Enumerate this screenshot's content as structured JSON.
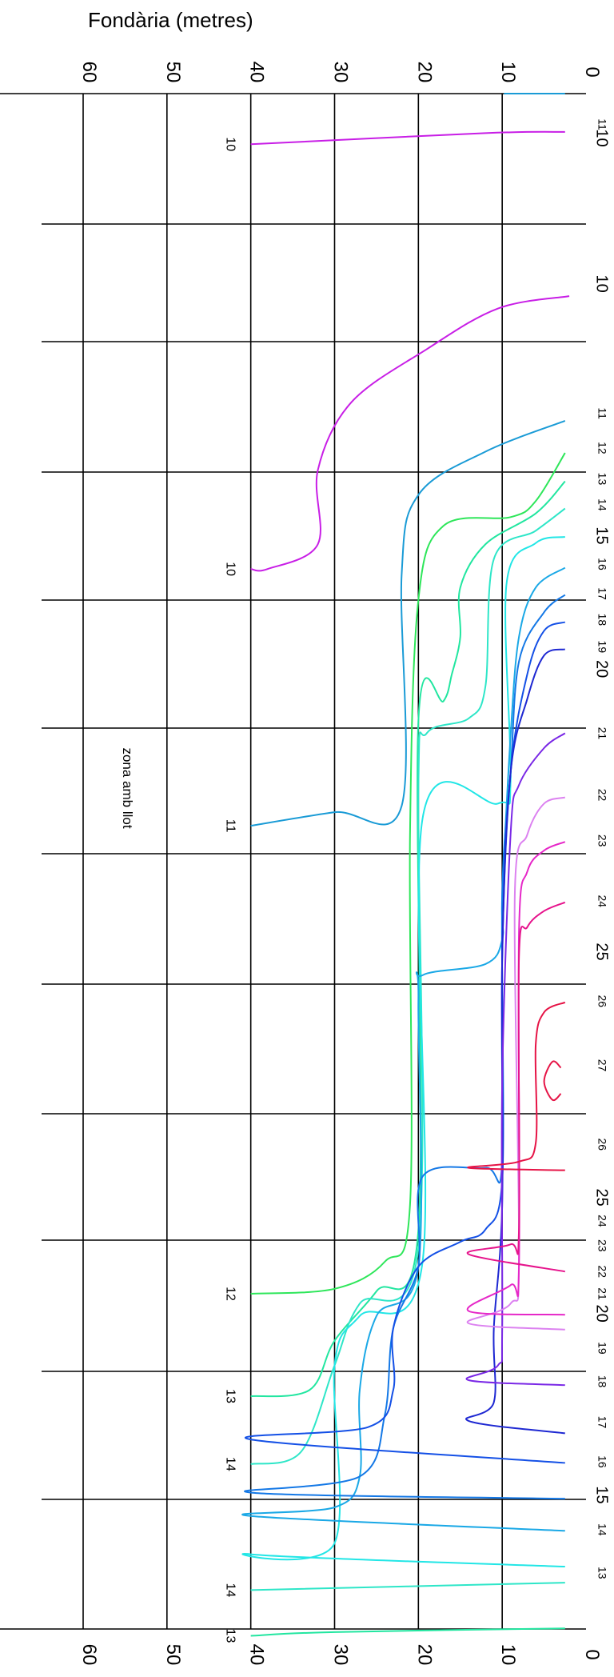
{
  "chart_data": {
    "type": "line",
    "title": "",
    "ylabel": "Fondària (metres)",
    "y_axis_ticks": [
      "0",
      "10",
      "20",
      "30",
      "40",
      "50",
      "60"
    ],
    "ylim": [
      0,
      60
    ],
    "orientation": "rotated-90-clockwise",
    "annotation": "zona amb llot",
    "contours": [
      {
        "name": "11",
        "color": "#1a9bd6",
        "points": [
          [
            2.5,
            0
          ],
          [
            9.8,
            0
          ]
        ],
        "labels": [
          "11"
        ]
      },
      {
        "name": "10a",
        "color": "#c81ee6",
        "points": [
          [
            2.5,
            3.1
          ],
          [
            12,
            3.2
          ],
          [
            40,
            4.1
          ]
        ],
        "labels": [
          "10",
          "10"
        ]
      },
      {
        "name": "10b",
        "color": "#c81ee6",
        "points": [
          [
            2,
            16.4
          ],
          [
            10.5,
            17.4
          ],
          [
            19,
            20.7
          ],
          [
            28,
            25
          ],
          [
            32,
            30.5
          ],
          [
            32,
            36.5
          ],
          [
            38,
            38.5
          ],
          [
            40,
            38.5
          ]
        ],
        "labels": [
          "10",
          "10"
        ]
      },
      {
        "name": "11b",
        "color": "#1a9bd6",
        "points": [
          [
            2.5,
            26.5
          ],
          [
            12,
            29
          ],
          [
            20,
            32.5
          ],
          [
            22,
            39
          ],
          [
            22,
            57.7
          ],
          [
            30,
            58.2
          ],
          [
            40,
            59.3
          ]
        ],
        "labels": [
          "11",
          "11"
        ]
      },
      {
        "name": "12",
        "color": "#2ee65a",
        "points": [
          [
            2.5,
            29.1
          ],
          [
            6,
            33
          ],
          [
            9,
            34.3
          ],
          [
            17,
            35
          ],
          [
            20,
            41
          ],
          [
            21,
            60
          ],
          [
            21,
            90
          ],
          [
            24,
            94.6
          ],
          [
            30,
            96.8
          ],
          [
            40,
            97.2
          ]
        ],
        "labels": [
          "12",
          "12"
        ]
      },
      {
        "name": "13a",
        "color": "#22e6a0",
        "points": [
          [
            2.5,
            31.4
          ],
          [
            6,
            34
          ],
          [
            12,
            36.5
          ],
          [
            15,
            40
          ],
          [
            15,
            44
          ],
          [
            16,
            47
          ],
          [
            17,
            49.2
          ],
          [
            20,
            50.8
          ],
          [
            20,
            92
          ],
          [
            25,
            97
          ],
          [
            30,
            101
          ],
          [
            33,
            105
          ],
          [
            40,
            105.5
          ]
        ],
        "labels": [
          "13",
          "13"
        ]
      },
      {
        "name": "14a",
        "color": "#2ee6c8",
        "points": [
          [
            2.5,
            33.6
          ],
          [
            6,
            35.4
          ],
          [
            11,
            37.7
          ],
          [
            12,
            48
          ],
          [
            14,
            50.6
          ],
          [
            19,
            51.8
          ],
          [
            20,
            56.2
          ],
          [
            20,
            93.5
          ],
          [
            27,
            98
          ],
          [
            30,
            103
          ],
          [
            34,
            110
          ],
          [
            40,
            111
          ]
        ],
        "labels": [
          "14",
          "14"
        ]
      },
      {
        "name": "15",
        "color": "#22e6e6",
        "points": [
          [
            2.5,
            35.9
          ],
          [
            6,
            36.4
          ],
          [
            9.5,
            39.8
          ],
          [
            9,
            55.7
          ],
          [
            10.5,
            57.5
          ],
          [
            19.5,
            58.7
          ],
          [
            19.5,
            94.6
          ],
          [
            27,
            99
          ],
          [
            30,
            103
          ],
          [
            30,
            117.4
          ],
          [
            40,
            118.3
          ],
          [
            2.5,
            119.3
          ]
        ],
        "labels": [
          "15",
          "15"
        ]
      },
      {
        "name": "16",
        "color": "#1aa8e6",
        "points": [
          [
            2.5,
            38.4
          ],
          [
            6,
            40
          ],
          [
            8,
            44
          ],
          [
            9,
            52
          ],
          [
            10,
            65
          ],
          [
            10,
            68.5
          ],
          [
            12,
            70.5
          ],
          [
            19.5,
            71.4
          ],
          [
            20,
            73.5
          ],
          [
            20,
            95
          ],
          [
            25,
            99
          ],
          [
            27,
            105
          ],
          [
            27,
            112
          ],
          [
            30,
            114.5
          ],
          [
            40,
            115.2
          ],
          [
            2.5,
            116.4
          ]
        ],
        "labels": [
          "16",
          "16"
        ]
      },
      {
        "name": "17",
        "color": "#1478e6",
        "points": [
          [
            2.5,
            40.6
          ],
          [
            5,
            42
          ],
          [
            8,
            46
          ],
          [
            9,
            55
          ],
          [
            10,
            65
          ],
          [
            10,
            86.5
          ],
          [
            12,
            87
          ],
          [
            19.5,
            87.7
          ],
          [
            20,
            95
          ],
          [
            23,
            100
          ],
          [
            24,
            107
          ],
          [
            27,
            112
          ],
          [
            40,
            113.3
          ],
          [
            2.5,
            113.8
          ]
        ],
        "labels": [
          "17",
          "17"
        ]
      },
      {
        "name": "18",
        "color": "#1450e6",
        "points": [
          [
            2.5,
            42.8
          ],
          [
            5,
            43.5
          ],
          [
            7,
            47
          ],
          [
            9,
            55
          ],
          [
            10,
            70
          ],
          [
            10,
            88
          ],
          [
            12,
            92
          ],
          [
            15,
            93
          ],
          [
            20,
            95
          ],
          [
            23,
            100
          ],
          [
            23,
            105
          ],
          [
            26,
            108
          ],
          [
            40,
            109
          ],
          [
            2.5,
            110.9
          ]
        ],
        "labels": [
          "18",
          "18"
        ]
      },
      {
        "name": "19",
        "color": "#1e28d2",
        "points": [
          [
            2.5,
            45
          ],
          [
            5,
            45.5
          ],
          [
            7,
            49
          ],
          [
            9,
            55
          ],
          [
            10,
            70
          ],
          [
            10,
            90
          ],
          [
            11,
            100
          ],
          [
            11,
            106
          ],
          [
            14,
            107.5
          ],
          [
            2.5,
            108.5
          ]
        ],
        "labels": [
          "19",
          "19"
        ]
      },
      {
        "name": "21",
        "color": "#7a28e6",
        "points": [
          [
            2.5,
            51.8
          ],
          [
            5,
            53
          ],
          [
            8,
            56
          ],
          [
            9,
            60
          ],
          [
            10,
            80
          ],
          [
            10,
            100
          ],
          [
            10.5,
            103
          ],
          [
            14,
            104.2
          ],
          [
            2.5,
            104.6
          ]
        ],
        "labels": [
          "21",
          "21"
        ]
      },
      {
        "name": "22",
        "color": "#dc82f0",
        "points": [
          [
            2.5,
            57
          ],
          [
            5,
            57.5
          ],
          [
            7,
            60
          ],
          [
            8.5,
            65
          ],
          [
            8,
            94
          ],
          [
            9,
            98
          ],
          [
            14,
            99.6
          ],
          [
            2.5,
            100.1
          ]
        ],
        "labels": [
          "22",
          "22"
        ]
      },
      {
        "name": "23",
        "color": "#e628c8",
        "points": [
          [
            2.5,
            60.6
          ],
          [
            5,
            61.3
          ],
          [
            7,
            63
          ],
          [
            8,
            68
          ],
          [
            8,
            95
          ],
          [
            9,
            96.5
          ],
          [
            14,
            98.6
          ],
          [
            2.5,
            98.9
          ]
        ],
        "labels": [
          "23",
          "23"
        ]
      },
      {
        "name": "24",
        "color": "#e6148c",
        "points": [
          [
            2.5,
            65.5
          ],
          [
            5,
            66.2
          ],
          [
            7,
            67.5
          ],
          [
            8,
            70
          ],
          [
            8,
            92
          ],
          [
            9,
            93.2
          ],
          [
            14,
            94
          ],
          [
            2.5,
            95.4
          ]
        ],
        "labels": [
          "24",
          "24"
        ]
      },
      {
        "name": "26",
        "color": "#e61446",
        "points": [
          [
            2.5,
            73.6
          ],
          [
            5,
            74.4
          ],
          [
            6,
            77
          ],
          [
            6,
            85
          ],
          [
            8,
            86.5
          ],
          [
            14,
            87
          ],
          [
            2.5,
            87.2
          ]
        ],
        "labels": [
          "26",
          "26"
        ]
      },
      {
        "name": "27",
        "color": "#e61446",
        "points": [
          [
            3,
            78.9
          ],
          [
            4,
            78.4
          ],
          [
            5,
            80
          ],
          [
            4,
            81.5
          ],
          [
            3,
            81
          ]
        ],
        "labels": [
          "27"
        ]
      },
      {
        "name": "14b",
        "color": "#2ee6c8",
        "points": [
          [
            2.5,
            120.6
          ],
          [
            40,
            121.2
          ]
        ],
        "labels": [
          "14",
          "14"
        ]
      },
      {
        "name": "13b",
        "color": "#22e6a0",
        "points": [
          [
            2.5,
            124.3
          ],
          [
            30,
            124.6
          ],
          [
            40,
            124.9
          ]
        ],
        "labels": [
          "13",
          "13"
        ]
      }
    ],
    "left_edge_labels": [
      "11",
      "10",
      "10",
      "11",
      "12",
      "13",
      "14",
      "15",
      "16",
      "17",
      "18",
      "19",
      "20",
      "21",
      "22",
      "23",
      "24",
      "25",
      "26",
      "27",
      "26",
      "25",
      "24",
      "23",
      "22",
      "21",
      "20",
      "19",
      "18",
      "17",
      "16",
      "15",
      "14",
      "13"
    ],
    "left_edge_label_x": [
      2.5,
      3.6,
      15.4,
      25.9,
      28.7,
      31.2,
      33.3,
      35.8,
      38.1,
      40.5,
      42.6,
      44.8,
      46.6,
      51.8,
      56.8,
      60.5,
      65.4,
      69.5,
      73.5,
      78.7,
      85.1,
      89.4,
      91.3,
      93.3,
      95.4,
      97.2,
      98.8,
      101.6,
      104.3,
      107.6,
      110.8,
      113.5,
      116.3,
      119.8
    ]
  }
}
